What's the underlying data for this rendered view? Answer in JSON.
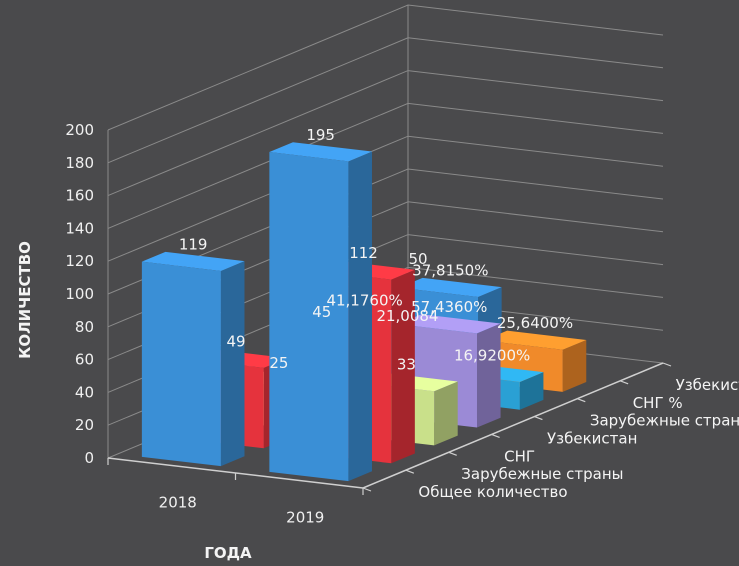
{
  "chart_data": {
    "type": "bar",
    "title": "",
    "xlabel": "ГОДА",
    "ylabel": "КОЛИЧЕСТВО",
    "ylim": [
      0,
      200
    ],
    "yticks": [
      "0",
      "20",
      "40",
      "60",
      "80",
      "100",
      "120",
      "140",
      "160",
      "180",
      "200"
    ],
    "categories": [
      "2018",
      "2019"
    ],
    "grid": true,
    "legend": "none",
    "series": [
      {
        "name": "Общее количество",
        "color": "#3a8fd6",
        "values": [
          119,
          195
        ],
        "labels": [
          "119",
          "195"
        ]
      },
      {
        "name": "Зарубежные страны",
        "color": "#e5333d",
        "values": [
          49,
          112
        ],
        "labels": [
          "49",
          "112"
        ]
      },
      {
        "name": "СНГ",
        "color": "#c9e08a",
        "values": [
          25,
          33
        ],
        "labels": [
          "25",
          "33"
        ]
      },
      {
        "name": "Узбекистан",
        "color": "#9b8ad6",
        "values": [
          45,
          57.436
        ],
        "labels": [
          "45",
          "57,4360%"
        ]
      },
      {
        "name": "Зарубежные страны %",
        "color": "#2aa0d4",
        "values": [
          41.176,
          16.92
        ],
        "labels": [
          "41,1760%",
          "16,9200%"
        ]
      },
      {
        "name": "СНГ %",
        "color": "#f08a2a",
        "values": [
          21.0084,
          25.64
        ],
        "labels": [
          "21,0084",
          "25,6400%"
        ]
      },
      {
        "name": "Узбекистан %",
        "color": "#3a8fd6",
        "values": [
          37.815,
          0
        ],
        "labels": [
          "37,8150%",
          ""
        ]
      }
    ],
    "extra_labels": [
      "50"
    ]
  }
}
